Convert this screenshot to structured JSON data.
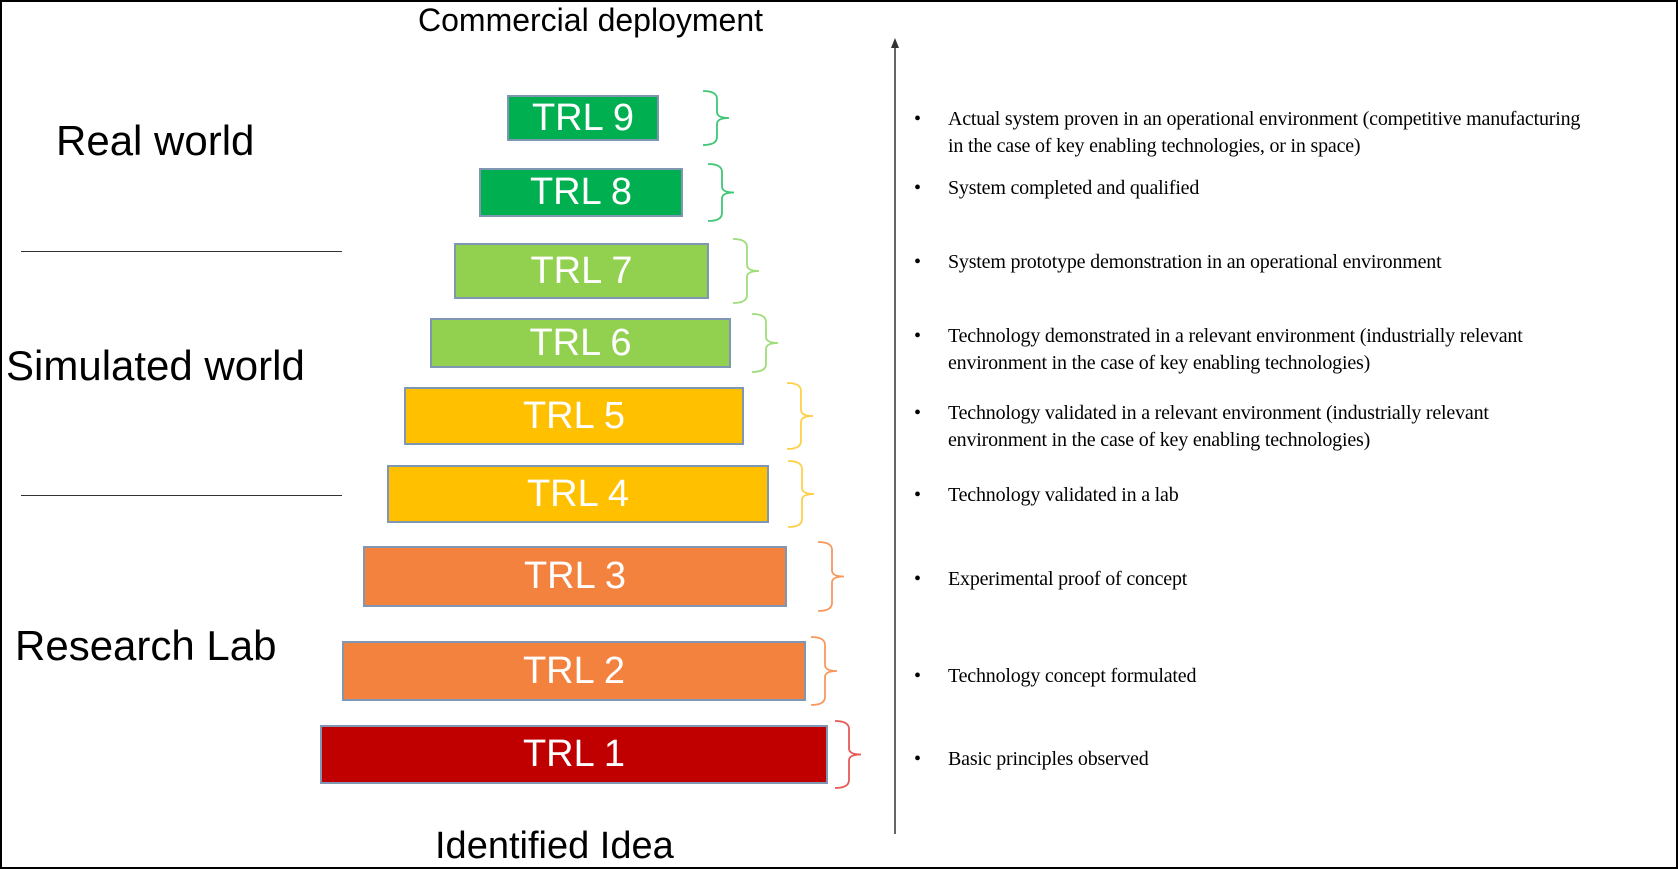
{
  "top_label": "Commercial deployment",
  "bottom_label": "Identified Idea",
  "regions": [
    {
      "label": "Real world"
    },
    {
      "label": "Simulated world"
    },
    {
      "label": "Research Lab"
    }
  ],
  "levels": [
    {
      "label": "TRL 9",
      "color": "#00b050",
      "brace_color": "#3fc774",
      "description": [
        "Actual system proven in an operational environment (competitive manufacturing",
        "in the case of key enabling technologies, or in space)"
      ]
    },
    {
      "label": "TRL 8",
      "color": "#00b050",
      "brace_color": "#3fc774",
      "description": [
        "System completed and qualified"
      ]
    },
    {
      "label": "TRL 7",
      "color": "#92d050",
      "brace_color": "#9fdc7a",
      "description": [
        "System prototype demonstration in an operational environment"
      ]
    },
    {
      "label": "TRL 6",
      "color": "#92d050",
      "brace_color": "#9fdc7a",
      "description": [
        "Technology demonstrated in a relevant environment (industrially relevant",
        "environment in the case of key enabling technologies)"
      ]
    },
    {
      "label": "TRL 5",
      "color": "#ffc000",
      "brace_color": "#ffcf4a",
      "description": [
        "Technology validated in a relevant environment (industrially relevant",
        "environment in the case of key enabling technologies)"
      ]
    },
    {
      "label": "TRL 4",
      "color": "#ffc000",
      "brace_color": "#ffcf4a",
      "description": [
        "Technology validated in a lab"
      ]
    },
    {
      "label": "TRL 3",
      "color": "#f4823f",
      "brace_color": "#f7995f",
      "description": [
        "Experimental proof of concept"
      ]
    },
    {
      "label": "TRL 2",
      "color": "#f4823f",
      "brace_color": "#f7995f",
      "description": [
        "Technology concept formulated"
      ]
    },
    {
      "label": "TRL 1",
      "color": "#c00000",
      "brace_color": "#e85a5a",
      "description": [
        "Basic principles observed"
      ]
    }
  ],
  "bullet": "•"
}
